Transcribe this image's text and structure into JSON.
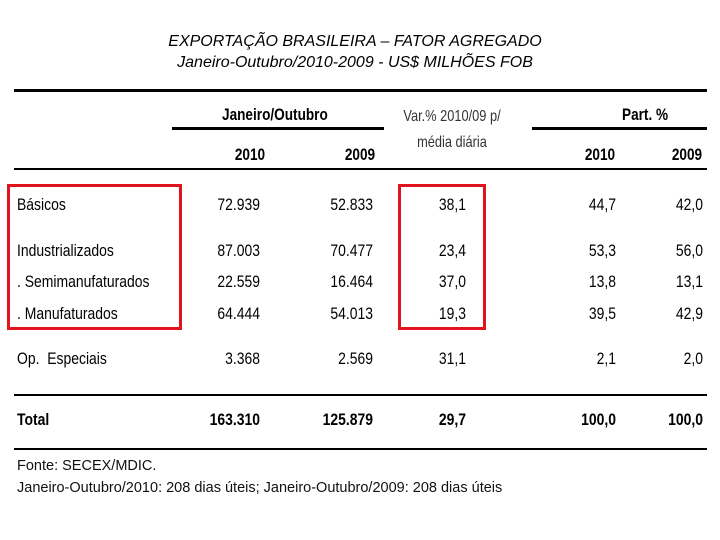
{
  "title": "EXPORTAÇÃO BRASILEIRA – FATOR AGREGADO",
  "subtitle": "Janeiro-Outubro/2010-2009 - US$ MILHÕES FOB",
  "chart_data": {
    "type": "table",
    "header_groups": {
      "period": "Janeiro/Outubro",
      "variation": "Var.% 2010/09 p/ média diária",
      "share": "Part. %"
    },
    "columns": [
      "2010",
      "2009",
      "2010",
      "2009"
    ],
    "rows": [
      {
        "label": "Básicos",
        "v2010": "72.939",
        "v2009": "52.833",
        "var": "38,1",
        "p2010": "44,7",
        "p2009": "42,0"
      },
      {
        "label": "Industrializados",
        "v2010": "87.003",
        "v2009": "70.477",
        "var": "23,4",
        "p2010": "53,3",
        "p2009": "56,0"
      },
      {
        "label": ". Semimanufaturados",
        "v2010": "22.559",
        "v2009": "16.464",
        "var": "37,0",
        "p2010": "13,8",
        "p2009": "13,1"
      },
      {
        "label": ". Manufaturados",
        "v2010": "64.444",
        "v2009": "54.013",
        "var": "19,3",
        "p2010": "39,5",
        "p2009": "42,9"
      },
      {
        "label": "Op.  Especiais",
        "v2010": "3.368",
        "v2009": "2.569",
        "var": "31,1",
        "p2010": "2,1",
        "p2009": "2,0"
      },
      {
        "label": "Total",
        "v2010": "163.310",
        "v2009": "125.879",
        "var": "29,7",
        "p2010": "100,0",
        "p2009": "100,0"
      }
    ],
    "highlight_color": "#e0141e"
  },
  "notes": [
    "Fonte: SECEX/MDIC.",
    "Janeiro-Outubro/2010: 208 dias úteis; Janeiro-Outubro/2009: 208 dias úteis"
  ]
}
